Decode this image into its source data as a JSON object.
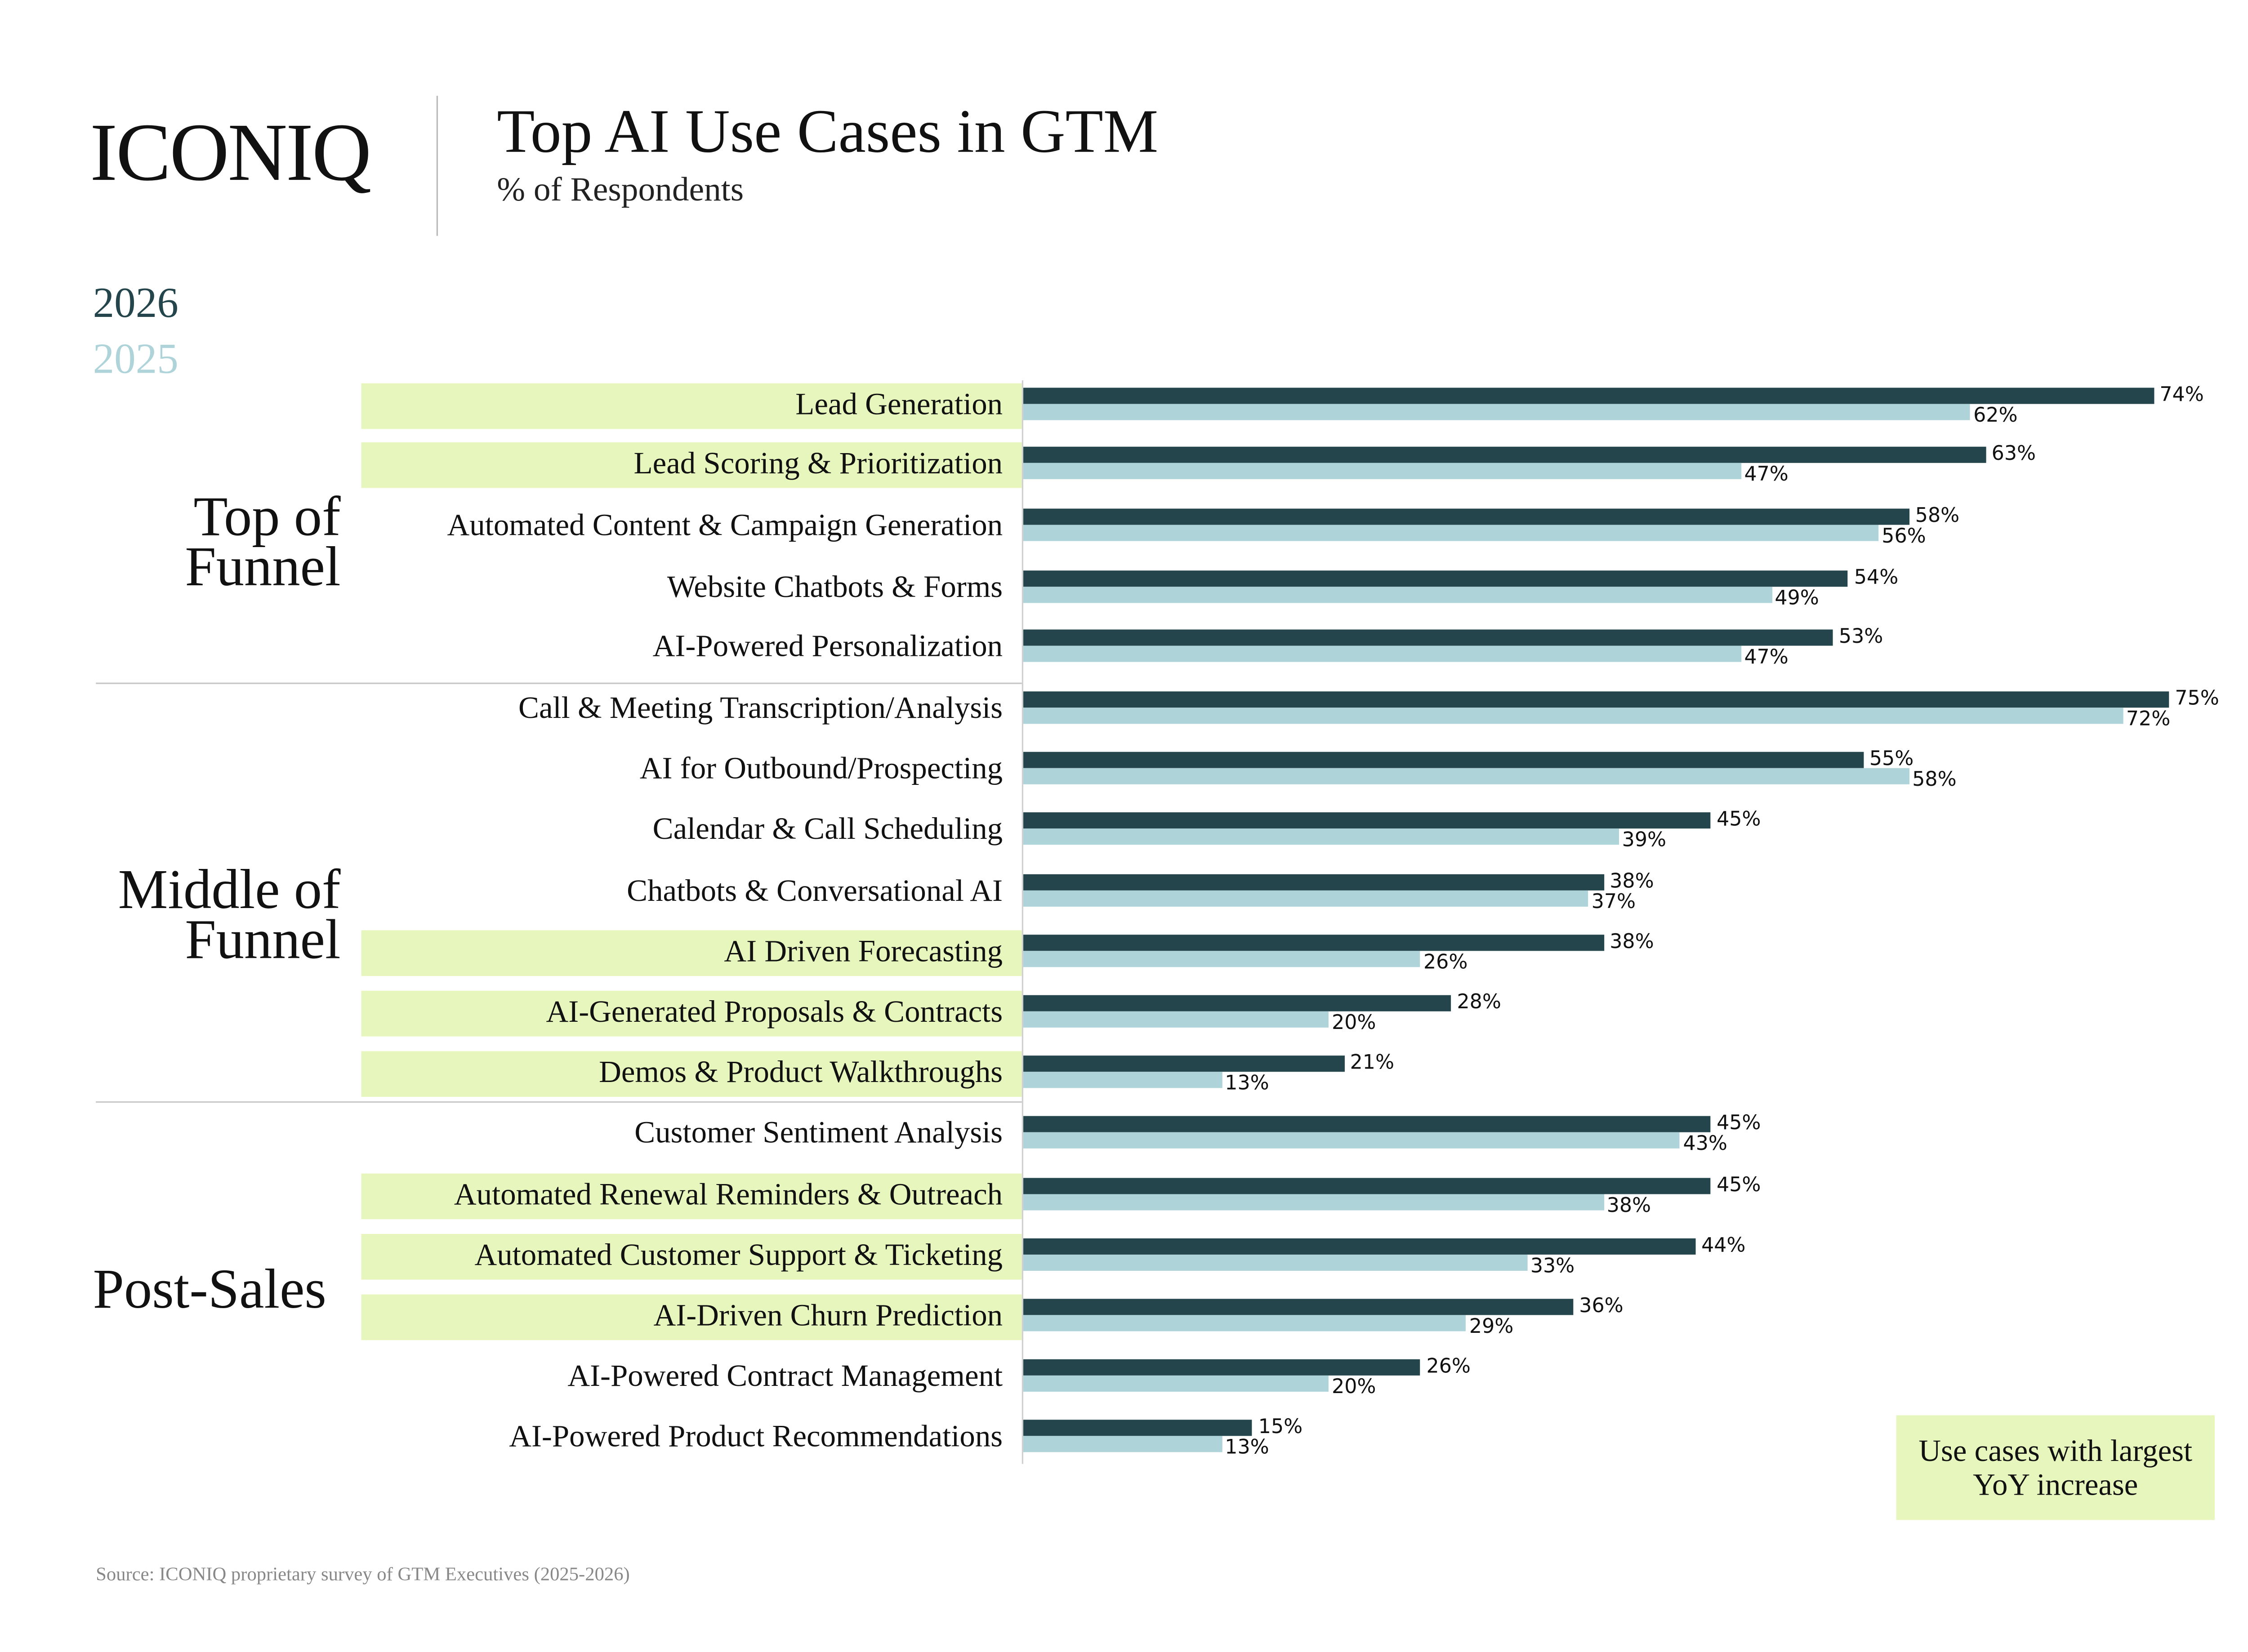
{
  "header": {
    "logo": "ICONIQ",
    "title": "Top AI Use Cases in GTM",
    "subtitle": "% of Respondents"
  },
  "legend_note": "Use cases with largest YoY increase",
  "source": "Source: ICONIQ proprietary survey of GTM Executives (2025-2026)",
  "colors": {
    "series_2026": "#24454b",
    "series_2025": "#aed4da",
    "highlight": "#e7f6bd"
  },
  "chart_data": {
    "type": "bar",
    "orientation": "horizontal",
    "title": "Top AI Use Cases in GTM",
    "subtitle": "% of Respondents",
    "legend": [
      "2026",
      "2025"
    ],
    "legend_placement": "top-left",
    "grid": false,
    "xlim": [
      0,
      100
    ],
    "groups": [
      {
        "name": "Top of Funnel",
        "categories": [
          0,
          1,
          2,
          3,
          4
        ]
      },
      {
        "name": "Middle of Funnel",
        "categories": [
          5,
          6,
          7,
          8,
          9,
          10,
          11
        ]
      },
      {
        "name": "Post-Sales",
        "categories": [
          12,
          13,
          14,
          15,
          16,
          17
        ]
      }
    ],
    "categories": [
      "Lead Generation",
      "Lead Scoring & Prioritization",
      "Automated Content & Campaign Generation",
      "Website Chatbots & Forms",
      "AI-Powered Personalization",
      "Call & Meeting Transcription/Analysis",
      "AI for Outbound/Prospecting",
      "Calendar & Call Scheduling",
      "Chatbots & Conversational AI",
      "AI Driven Forecasting",
      "AI-Generated Proposals & Contracts",
      "Demos & Product Walkthroughs",
      "Customer Sentiment Analysis",
      "Automated Renewal Reminders & Outreach",
      "Automated Customer Support & Ticketing",
      "AI-Driven Churn Prediction",
      "AI-Powered Contract Management",
      "AI-Powered Product Recommendations"
    ],
    "highlighted": [
      true,
      true,
      false,
      false,
      false,
      false,
      false,
      false,
      false,
      true,
      true,
      true,
      false,
      true,
      true,
      true,
      false,
      false
    ],
    "series": [
      {
        "name": "2026",
        "values": [
          74,
          63,
          58,
          54,
          53,
          75,
          55,
          45,
          38,
          38,
          28,
          21,
          45,
          45,
          44,
          36,
          26,
          15
        ]
      },
      {
        "name": "2025",
        "values": [
          62,
          47,
          56,
          49,
          47,
          72,
          58,
          39,
          37,
          26,
          20,
          13,
          43,
          38,
          33,
          29,
          20,
          13
        ]
      }
    ],
    "value_labels": {
      "2026": [
        "74%",
        "63%",
        "58%",
        "54%",
        "53%",
        "75%",
        "55%",
        "45%",
        "38%",
        "38%",
        "28%",
        "21%",
        "45%",
        "45%",
        "44%",
        "36%",
        "26%",
        "15%"
      ],
      "2025": [
        "62%",
        "47%",
        "56%",
        "49%",
        "47%",
        "72%",
        "58%",
        "39%",
        "37%",
        "26%",
        "20%",
        "13%",
        "43%",
        "38%",
        "33%",
        "29%",
        "20%",
        "13%"
      ]
    }
  }
}
